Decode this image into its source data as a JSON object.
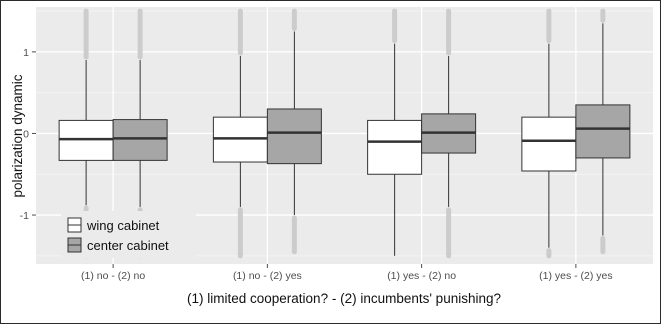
{
  "chart_data": {
    "type": "boxplot",
    "title": "",
    "xlabel": "(1) limited cooperation? - (2) incumbents' punishing?",
    "ylabel": "polarization dynamic",
    "ylim": [
      -1.6,
      1.55
    ],
    "yticks": [
      -1,
      0,
      1
    ],
    "ytick_labels": [
      "-1",
      "0",
      "1"
    ],
    "grid": true,
    "legend_position": "bottom-left",
    "categories": [
      "(1) no - (2) no",
      "(1) no - (2) yes",
      "(1) yes - (2) no",
      "(1) yes - (2) yes"
    ],
    "series": [
      {
        "name": "wing cabinet",
        "fill": "#ffffff",
        "boxes": [
          {
            "whisker_low": -0.88,
            "q1": -0.33,
            "median": -0.07,
            "q3": 0.16,
            "whisker_high": 0.9,
            "outlier_low": -1.5,
            "outlier_high": 1.5
          },
          {
            "whisker_low": -0.9,
            "q1": -0.35,
            "median": -0.06,
            "q3": 0.2,
            "whisker_high": 0.95,
            "outlier_low": -1.5,
            "outlier_high": 1.5
          },
          {
            "whisker_low": -1.5,
            "q1": -0.5,
            "median": -0.1,
            "q3": 0.16,
            "whisker_high": 1.1,
            "outlier_low": null,
            "outlier_high": 1.5
          },
          {
            "whisker_low": -1.4,
            "q1": -0.46,
            "median": -0.09,
            "q3": 0.2,
            "whisker_high": 1.1,
            "outlier_low": -1.5,
            "outlier_high": 1.5
          }
        ]
      },
      {
        "name": "center cabinet",
        "fill": "#a6a6a6",
        "boxes": [
          {
            "whisker_low": -0.9,
            "q1": -0.33,
            "median": -0.06,
            "q3": 0.17,
            "whisker_high": 0.9,
            "outlier_low": -1.5,
            "outlier_high": 1.5
          },
          {
            "whisker_low": -1.0,
            "q1": -0.37,
            "median": 0.01,
            "q3": 0.3,
            "whisker_high": 1.25,
            "outlier_low": -1.45,
            "outlier_high": 1.5
          },
          {
            "whisker_low": -0.9,
            "q1": -0.24,
            "median": 0.01,
            "q3": 0.24,
            "whisker_high": 0.95,
            "outlier_low": -1.5,
            "outlier_high": 1.5
          },
          {
            "whisker_low": -1.25,
            "q1": -0.3,
            "median": 0.06,
            "q3": 0.35,
            "whisker_high": 1.35,
            "outlier_low": -1.45,
            "outlier_high": 1.5
          }
        ]
      }
    ],
    "colors": {
      "panel": "#ebebeb",
      "grid_major": "#ffffff",
      "grid_minor": "#f5f5f5",
      "outlier": "#cccccc",
      "box_line": "#333333",
      "median": "#333333"
    }
  }
}
